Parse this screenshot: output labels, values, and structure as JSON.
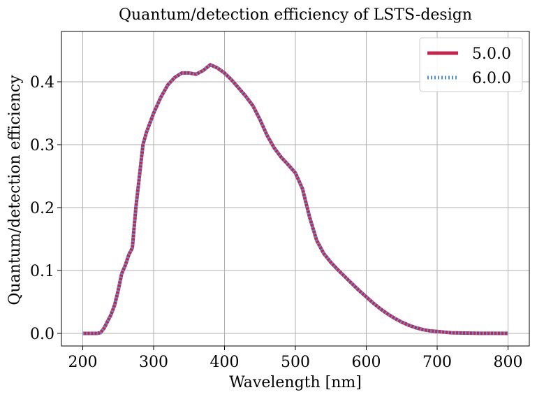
{
  "chart_data": {
    "type": "line",
    "title": "Quantum/detection efficiency of LSTS-design",
    "xlabel": "Wavelength [nm]",
    "ylabel": "Quantum/detection efficiency",
    "xlim": [
      170,
      830
    ],
    "ylim": [
      -0.02,
      0.48
    ],
    "xticks": [
      200,
      300,
      400,
      500,
      600,
      700,
      800
    ],
    "yticks": [
      0.0,
      0.1,
      0.2,
      0.3,
      0.4
    ],
    "ytick_labels": [
      "0.0",
      "0.1",
      "0.2",
      "0.3",
      "0.4"
    ],
    "grid": true,
    "legend_position": "top-right",
    "x": [
      200,
      220,
      225,
      230,
      240,
      245,
      250,
      255,
      260,
      265,
      270,
      275,
      280,
      285,
      290,
      300,
      310,
      320,
      330,
      340,
      350,
      360,
      370,
      380,
      390,
      400,
      410,
      420,
      430,
      440,
      450,
      460,
      470,
      480,
      490,
      500,
      510,
      520,
      530,
      540,
      550,
      560,
      570,
      580,
      590,
      600,
      610,
      620,
      630,
      640,
      650,
      660,
      670,
      680,
      690,
      700,
      720,
      740,
      760,
      780,
      800
    ],
    "series": [
      {
        "name": "5.0.0",
        "color": "#c2264e",
        "style": "solid",
        "values": [
          0.0,
          0.0,
          0.001,
          0.008,
          0.03,
          0.045,
          0.068,
          0.095,
          0.108,
          0.125,
          0.136,
          0.2,
          0.25,
          0.3,
          0.32,
          0.35,
          0.375,
          0.395,
          0.407,
          0.414,
          0.414,
          0.412,
          0.418,
          0.427,
          0.422,
          0.414,
          0.403,
          0.39,
          0.377,
          0.362,
          0.34,
          0.315,
          0.295,
          0.28,
          0.268,
          0.255,
          0.23,
          0.185,
          0.148,
          0.127,
          0.113,
          0.101,
          0.09,
          0.079,
          0.068,
          0.058,
          0.048,
          0.039,
          0.031,
          0.024,
          0.018,
          0.013,
          0.009,
          0.006,
          0.004,
          0.003,
          0.001,
          0.0005,
          0.0002,
          0.0001,
          0.0
        ]
      },
      {
        "name": "6.0.0",
        "color": "#5b8fd6",
        "style": "dotted",
        "values": [
          0.0,
          0.0,
          0.001,
          0.008,
          0.03,
          0.045,
          0.068,
          0.095,
          0.108,
          0.125,
          0.136,
          0.2,
          0.25,
          0.3,
          0.32,
          0.35,
          0.375,
          0.395,
          0.407,
          0.414,
          0.414,
          0.412,
          0.418,
          0.427,
          0.422,
          0.414,
          0.403,
          0.39,
          0.377,
          0.362,
          0.34,
          0.315,
          0.295,
          0.28,
          0.268,
          0.255,
          0.23,
          0.185,
          0.148,
          0.127,
          0.113,
          0.101,
          0.09,
          0.079,
          0.068,
          0.058,
          0.048,
          0.039,
          0.031,
          0.024,
          0.018,
          0.013,
          0.009,
          0.006,
          0.004,
          0.003,
          0.001,
          0.0005,
          0.0002,
          0.0001,
          0.0
        ]
      }
    ]
  }
}
